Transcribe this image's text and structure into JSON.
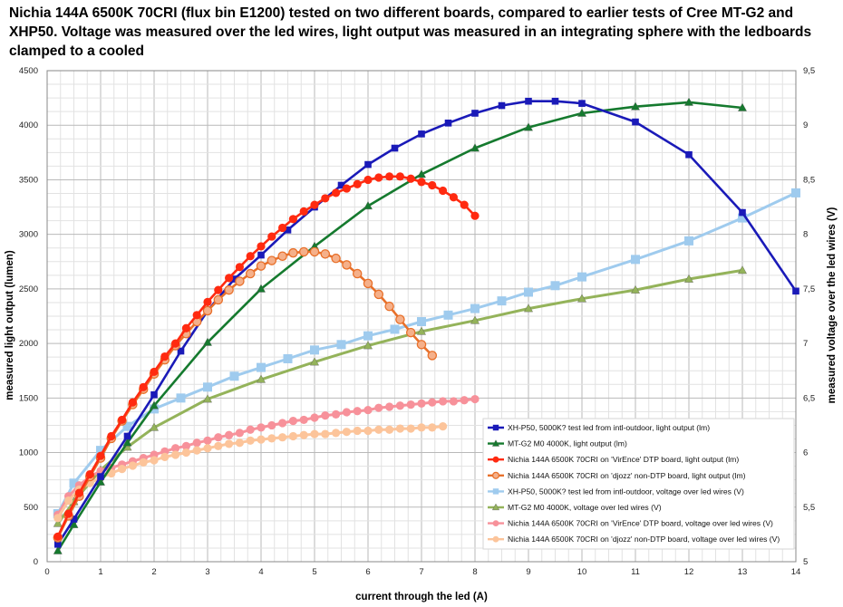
{
  "title": "Nichia 144A 6500K 70CRI (flux bin E1200) tested on two different boards, compared to earlier tests of Cree MT-G2 and XHP50. Voltage was measured over the led wires, light output was measured in an integrating sphere with the ledboards clamped to a cooled",
  "chart_data": {
    "type": "line",
    "xlabel": "current through the led (A)",
    "ylabel": "measured light output (lumen)",
    "y2label": "measured voltage over the led wires (V)",
    "xlim": [
      0,
      14
    ],
    "ylim": [
      0,
      4500
    ],
    "y2lim": [
      5,
      9.5
    ],
    "x_ticks": [
      "0",
      "1",
      "2",
      "3",
      "4",
      "5",
      "6",
      "7",
      "8",
      "9",
      "10",
      "11",
      "12",
      "13",
      "14"
    ],
    "y_ticks": [
      "0",
      "500",
      "1000",
      "1500",
      "2000",
      "2500",
      "3000",
      "3500",
      "4000",
      "4500"
    ],
    "y2_ticks": [
      "5",
      "5,5",
      "6",
      "6,5",
      "7",
      "7,5",
      "8",
      "8,5",
      "9",
      "9,5"
    ],
    "grid": true,
    "legend_position": "bottom-right",
    "series": [
      {
        "name": "XH-P50, 5000K? test led from intl-outdoor, light output (lm)",
        "axis": "left",
        "color": "#1a1ab8",
        "marker": "square",
        "x": [
          0.2,
          0.5,
          1,
          1.5,
          2,
          2.5,
          3,
          3.5,
          4,
          4.5,
          5,
          5.5,
          6,
          6.5,
          7,
          7.5,
          8,
          8.5,
          9,
          9.5,
          10,
          11,
          12,
          13,
          14
        ],
        "y": [
          160,
          390,
          780,
          1150,
          1530,
          1930,
          2300,
          2590,
          2810,
          3040,
          3250,
          3450,
          3640,
          3790,
          3920,
          4020,
          4110,
          4180,
          4220,
          4220,
          4200,
          4030,
          3730,
          3200,
          2480
        ]
      },
      {
        "name": "MT-G2 M0 4000K, light output (lm)",
        "axis": "left",
        "color": "#157a2e",
        "marker": "triangle",
        "x": [
          0.2,
          0.5,
          1,
          1.5,
          2,
          3,
          4,
          5,
          6,
          7,
          8,
          9,
          10,
          11,
          12,
          13
        ],
        "y": [
          100,
          340,
          730,
          1090,
          1430,
          2010,
          2500,
          2890,
          3260,
          3550,
          3790,
          3980,
          4110,
          4170,
          4210,
          4160
        ]
      },
      {
        "name": "Nichia 144A 6500K 70CRI on 'VirEnce' DTP board, light output (lm)",
        "axis": "left",
        "color": "#ff2a10",
        "marker": "circle",
        "x": [
          0.2,
          0.4,
          0.6,
          0.8,
          1,
          1.2,
          1.4,
          1.6,
          1.8,
          2,
          2.2,
          2.4,
          2.6,
          2.8,
          3,
          3.2,
          3.4,
          3.6,
          3.8,
          4,
          4.2,
          4.4,
          4.6,
          4.8,
          5,
          5.2,
          5.4,
          5.6,
          5.8,
          6,
          6.2,
          6.4,
          6.6,
          6.8,
          7,
          7.2,
          7.4,
          7.6,
          7.8,
          8
        ],
        "y": [
          230,
          440,
          630,
          800,
          970,
          1150,
          1300,
          1460,
          1600,
          1740,
          1880,
          2000,
          2140,
          2260,
          2380,
          2490,
          2600,
          2700,
          2800,
          2890,
          2980,
          3060,
          3140,
          3210,
          3270,
          3330,
          3380,
          3420,
          3460,
          3500,
          3520,
          3530,
          3530,
          3510,
          3480,
          3450,
          3400,
          3340,
          3270,
          3170
        ]
      },
      {
        "name": "Nichia 144A 6500K 70CRI on 'djozz' non-DTP board, light output (lm)",
        "axis": "left",
        "color": "#e8702a",
        "marker": "circle-open",
        "x": [
          0.2,
          0.4,
          0.6,
          0.8,
          1,
          1.2,
          1.4,
          1.6,
          1.8,
          2,
          2.2,
          2.4,
          2.6,
          2.8,
          3,
          3.2,
          3.4,
          3.6,
          3.8,
          4,
          4.2,
          4.4,
          4.6,
          4.8,
          5,
          5.2,
          5.4,
          5.6,
          5.8,
          6,
          6.2,
          6.4,
          6.6,
          6.8,
          7,
          7.2
        ],
        "y": [
          220,
          420,
          600,
          780,
          950,
          1130,
          1290,
          1440,
          1580,
          1720,
          1850,
          1980,
          2090,
          2200,
          2300,
          2400,
          2490,
          2570,
          2640,
          2710,
          2760,
          2800,
          2830,
          2840,
          2840,
          2820,
          2780,
          2720,
          2640,
          2550,
          2450,
          2340,
          2220,
          2100,
          1990,
          1890
        ]
      },
      {
        "name": "XH-P50, 5000K? test led from intl-outdoor, voltage over led wires (V)",
        "axis": "right",
        "color": "#9fcbee",
        "marker": "square",
        "x": [
          0.2,
          0.5,
          1,
          1.5,
          2,
          2.5,
          3,
          3.5,
          4,
          4.5,
          5,
          5.5,
          6,
          6.5,
          7,
          7.5,
          8,
          8.5,
          9,
          9.5,
          10,
          11,
          12,
          13,
          14
        ],
        "y": [
          5.44,
          5.72,
          6.02,
          6.24,
          6.4,
          6.5,
          6.6,
          6.7,
          6.78,
          6.86,
          6.94,
          6.99,
          7.07,
          7.13,
          7.2,
          7.26,
          7.32,
          7.39,
          7.47,
          7.53,
          7.61,
          7.77,
          7.94,
          8.15,
          8.38
        ]
      },
      {
        "name": "MT-G2 M0 4000K, voltage over led wires (V)",
        "axis": "right",
        "color": "#94b35a",
        "marker": "triangle",
        "x": [
          0.2,
          0.5,
          1,
          1.5,
          2,
          3,
          4,
          5,
          6,
          7,
          8,
          9,
          10,
          11,
          12,
          13
        ],
        "y": [
          5.35,
          5.55,
          5.84,
          6.05,
          6.23,
          6.49,
          6.67,
          6.83,
          6.98,
          7.11,
          7.21,
          7.32,
          7.41,
          7.49,
          7.59,
          7.67
        ]
      },
      {
        "name": "Nichia 144A 6500K 70CRI on 'VirEnce' DTP board, voltage over led wires (V)",
        "axis": "right",
        "color": "#f7919a",
        "marker": "circle",
        "x": [
          0.2,
          0.4,
          0.6,
          0.8,
          1,
          1.2,
          1.4,
          1.6,
          1.8,
          2,
          2.2,
          2.4,
          2.6,
          2.8,
          3,
          3.2,
          3.4,
          3.6,
          3.8,
          4,
          4.2,
          4.4,
          4.6,
          4.8,
          5,
          5.2,
          5.4,
          5.6,
          5.8,
          6,
          6.2,
          6.4,
          6.6,
          6.8,
          7,
          7.2,
          7.4,
          7.6,
          7.8,
          8
        ],
        "y": [
          5.43,
          5.6,
          5.7,
          5.78,
          5.83,
          5.86,
          5.89,
          5.92,
          5.95,
          5.98,
          6.01,
          6.04,
          6.06,
          6.09,
          6.11,
          6.14,
          6.16,
          6.18,
          6.21,
          6.23,
          6.25,
          6.27,
          6.29,
          6.3,
          6.32,
          6.34,
          6.35,
          6.37,
          6.38,
          6.39,
          6.41,
          6.42,
          6.43,
          6.44,
          6.45,
          6.46,
          6.47,
          6.47,
          6.48,
          6.49
        ]
      },
      {
        "name": "Nichia 144A 6500K 70CRI on 'djozz' non-DTP board, voltage over led wires (V)",
        "axis": "right",
        "color": "#fcc49a",
        "marker": "circle",
        "x": [
          0.2,
          0.4,
          0.6,
          0.8,
          1,
          1.2,
          1.4,
          1.6,
          1.8,
          2,
          2.2,
          2.4,
          2.6,
          2.8,
          3,
          3.2,
          3.4,
          3.6,
          3.8,
          4,
          4.2,
          4.4,
          4.6,
          4.8,
          5,
          5.2,
          5.4,
          5.6,
          5.8,
          6,
          6.2,
          6.4,
          6.6,
          6.8,
          7,
          7.2,
          7.4
        ],
        "y": [
          5.4,
          5.56,
          5.66,
          5.72,
          5.77,
          5.81,
          5.85,
          5.88,
          5.91,
          5.93,
          5.96,
          5.98,
          6.0,
          6.02,
          6.04,
          6.06,
          6.08,
          6.09,
          6.11,
          6.12,
          6.13,
          6.14,
          6.15,
          6.16,
          6.17,
          6.17,
          6.18,
          6.19,
          6.2,
          6.2,
          6.21,
          6.21,
          6.22,
          6.22,
          6.23,
          6.23,
          6.24
        ]
      }
    ]
  }
}
